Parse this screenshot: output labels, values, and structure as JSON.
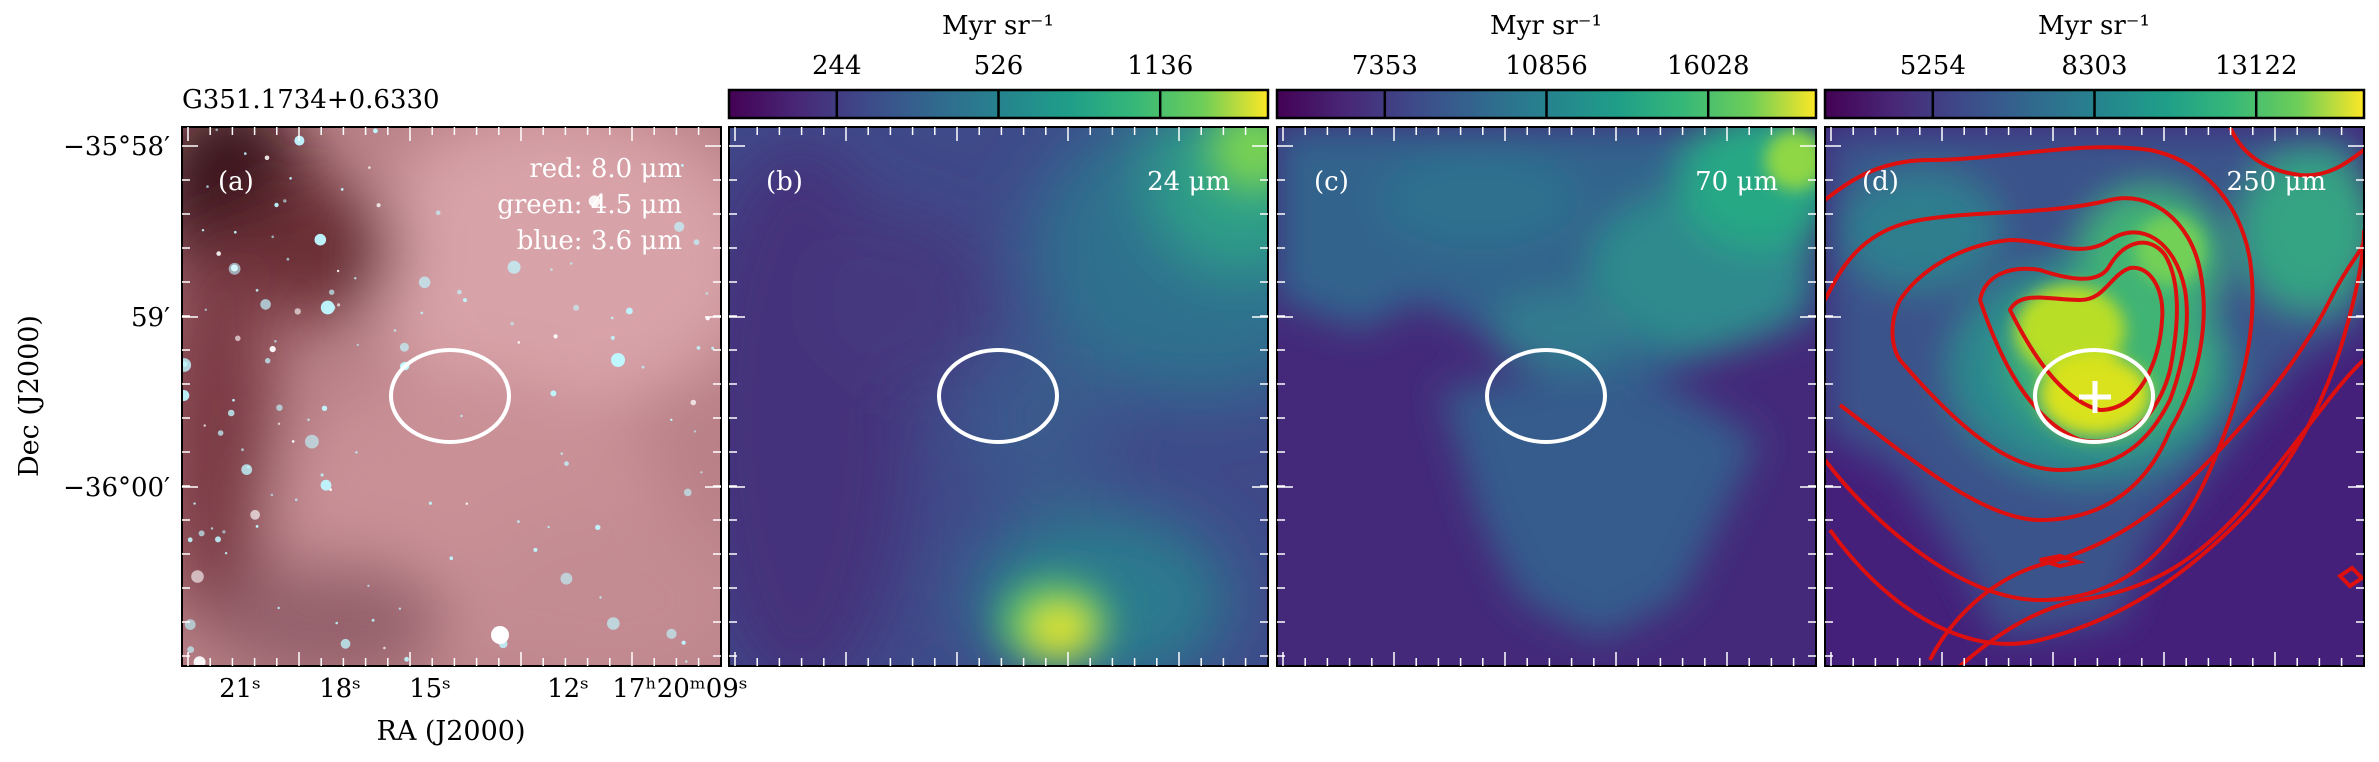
{
  "figure": {
    "source_name": "G351.1734+0.6330",
    "xlabel": "RA (J2000)",
    "ylabel": "Dec (J2000)",
    "x_tick_labels": [
      "21ˢ",
      "18ˢ",
      "15ˢ",
      "12ˢ",
      "17ʰ20ᵐ09ˢ"
    ],
    "y_tick_labels": [
      "−35°58′",
      "59′",
      "−36°00′"
    ]
  },
  "chart_data": [
    {
      "type": "heatmap",
      "panel": "(a)",
      "composite": [
        "red: 8.0 μm",
        "green: 4.5 μm",
        "blue: 3.6 μm"
      ],
      "colors": {
        "base": "#b87f85",
        "dark_lane": "#4a1a22",
        "stars": "#bff7ff"
      },
      "ellipse_color": "#ffffff"
    },
    {
      "type": "heatmap",
      "panel": "(b)",
      "wavelength": "24 μm",
      "colorbar": {
        "unit": "Myr sr⁻¹",
        "ticks": [
          "244",
          "526",
          "1136"
        ],
        "colormap": "viridis"
      }
    },
    {
      "type": "heatmap",
      "panel": "(c)",
      "wavelength": "70 μm",
      "colorbar": {
        "unit": "Myr sr⁻¹",
        "ticks": [
          "7353",
          "10856",
          "16028"
        ],
        "colormap": "viridis"
      }
    },
    {
      "type": "heatmap",
      "panel": "(d)",
      "wavelength": "250 μm",
      "colorbar": {
        "unit": "Myr sr⁻¹",
        "ticks": [
          "5254",
          "8303",
          "13122"
        ],
        "colormap": "viridis"
      },
      "contour_color": "#dd0f0f",
      "marker": "+"
    }
  ]
}
